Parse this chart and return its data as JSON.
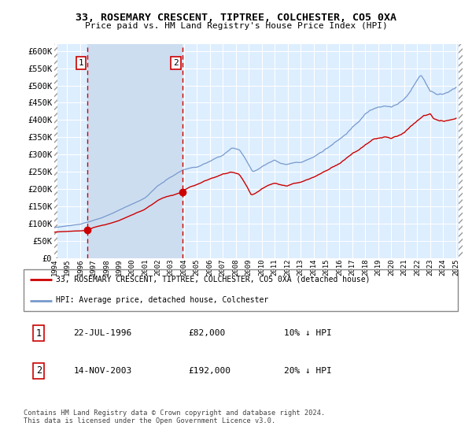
{
  "title1": "33, ROSEMARY CRESCENT, TIPTREE, COLCHESTER, CO5 0XA",
  "title2": "Price paid vs. HM Land Registry's House Price Index (HPI)",
  "ylim": [
    0,
    620000
  ],
  "yticks": [
    0,
    50000,
    100000,
    150000,
    200000,
    250000,
    300000,
    350000,
    400000,
    450000,
    500000,
    550000,
    600000
  ],
  "ytick_labels": [
    "£0",
    "£50K",
    "£100K",
    "£150K",
    "£200K",
    "£250K",
    "£300K",
    "£350K",
    "£400K",
    "£450K",
    "£500K",
    "£550K",
    "£600K"
  ],
  "plot_bg_color": "#ddeeff",
  "grid_color": "#ffffff",
  "sale1_date": 1996.55,
  "sale1_price": 82000,
  "sale2_date": 2003.87,
  "sale2_price": 192000,
  "vline_color": "#cc0000",
  "dot_color": "#cc0000",
  "highlight_bg": "#ccddf0",
  "legend_label_red": "33, ROSEMARY CRESCENT, TIPTREE, COLCHESTER, CO5 0XA (detached house)",
  "legend_label_blue": "HPI: Average price, detached house, Colchester",
  "table_row1": [
    "1",
    "22-JUL-1996",
    "£82,000",
    "10% ↓ HPI"
  ],
  "table_row2": [
    "2",
    "14-NOV-2003",
    "£192,000",
    "20% ↓ HPI"
  ],
  "footnote": "Contains HM Land Registry data © Crown copyright and database right 2024.\nThis data is licensed under the Open Government Licence v3.0.",
  "red_line_color": "#cc0000",
  "blue_line_color": "#7799cc"
}
